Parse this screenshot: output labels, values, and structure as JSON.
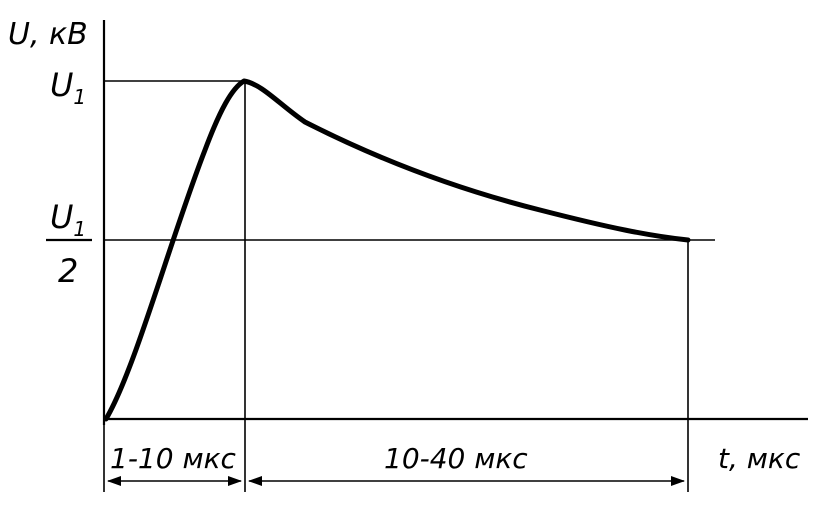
{
  "axes": {
    "y_label": "U, кВ",
    "x_label": "t, мкс"
  },
  "levels": {
    "peak_label": "U",
    "peak_subscript": "1",
    "half_numerator": "U",
    "half_subscript": "1",
    "half_denominator": "2"
  },
  "intervals": {
    "front": "1-10 мкс",
    "tail": "10-40 мкс"
  },
  "colors": {
    "ink": "#000000",
    "background": "#ffffff"
  }
}
